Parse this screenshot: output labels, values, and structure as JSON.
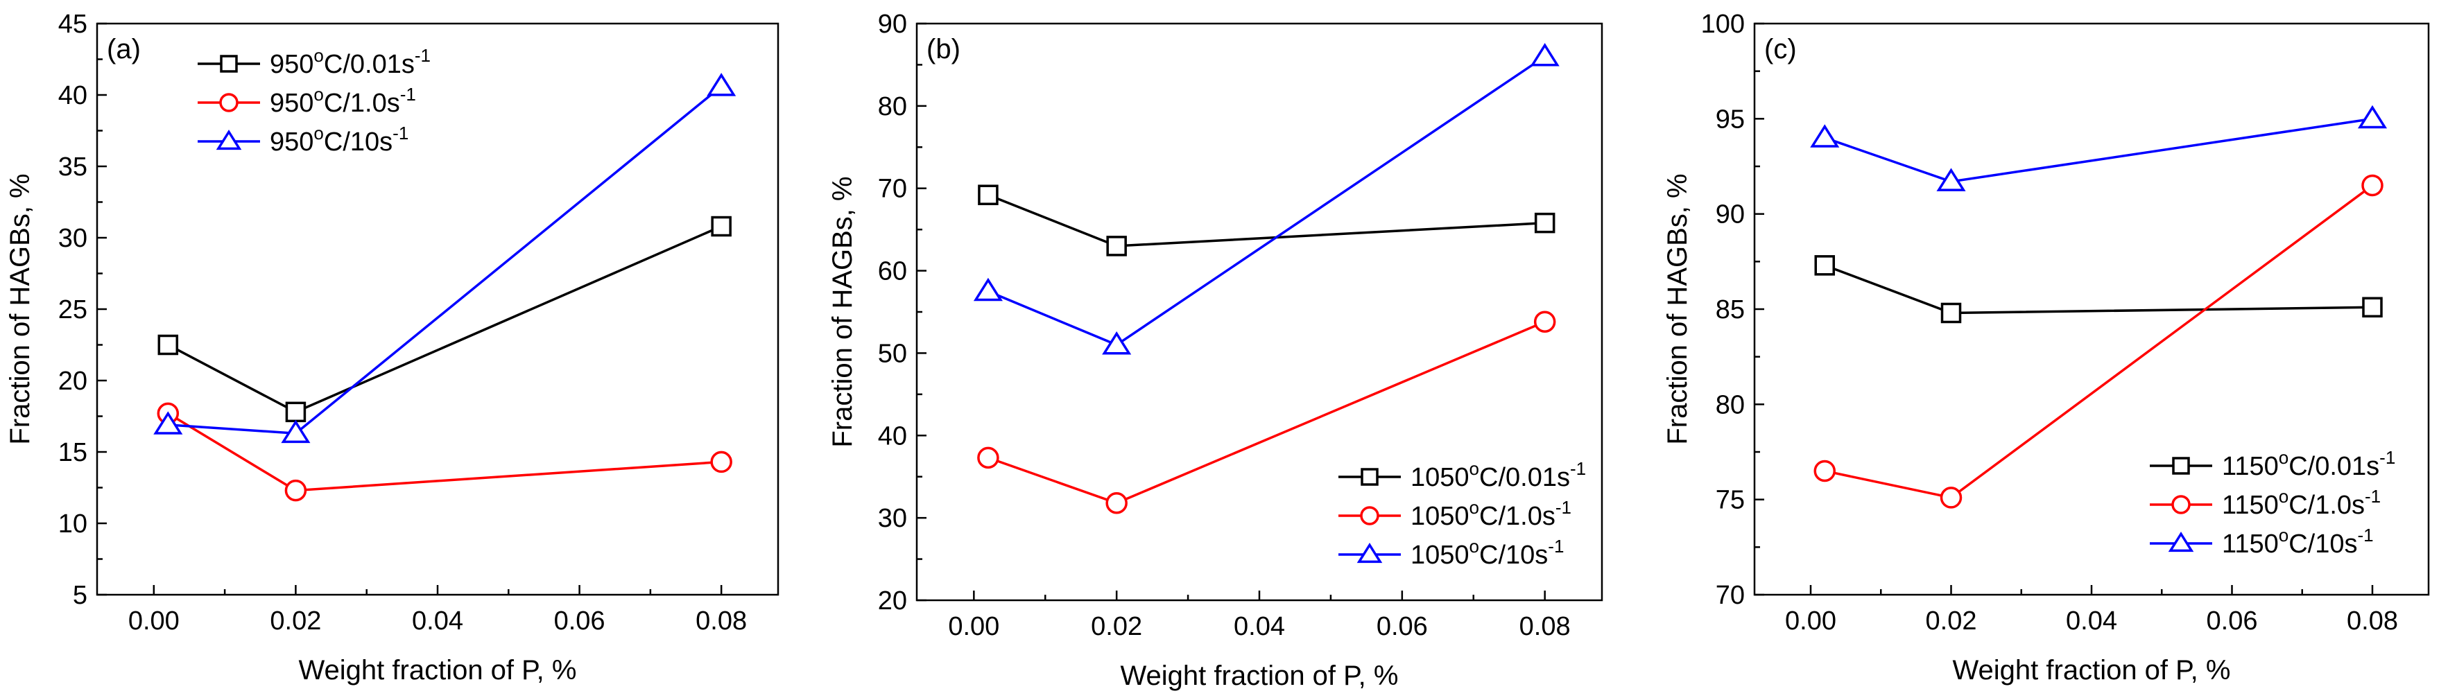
{
  "chart_data": [
    {
      "type": "line",
      "panel_label": "(a)",
      "xlabel": "Weight fraction of P, %",
      "ylabel": "Fraction of HAGBs, %",
      "xlim": [
        -0.008,
        0.088
      ],
      "ylim": [
        5,
        45
      ],
      "xticks": [
        "0.00",
        "0.02",
        "0.04",
        "0.06",
        "0.08"
      ],
      "yticks": [
        "5",
        "10",
        "15",
        "20",
        "25",
        "30",
        "35",
        "40",
        "45"
      ],
      "x": [
        0.002,
        0.02,
        0.08
      ],
      "legend_position": "top-left",
      "series": [
        {
          "name": "950°C/0.01s⁻¹",
          "label_main": "950",
          "label_mid": "C/0.01s",
          "label_sup": "-1",
          "marker": "square",
          "color": "#000000",
          "values": [
            22.5,
            17.8,
            30.8
          ]
        },
        {
          "name": "950°C/1.0s⁻¹",
          "label_main": "950",
          "label_mid": "C/1.0s",
          "label_sup": "-1",
          "marker": "circle",
          "color": "#ff0000",
          "values": [
            17.7,
            12.3,
            14.3
          ]
        },
        {
          "name": "950°C/10s⁻¹",
          "label_main": "950",
          "label_mid": "C/10s",
          "label_sup": "-1",
          "marker": "triangle",
          "color": "#0000ff",
          "values": [
            16.9,
            16.3,
            40.6
          ]
        }
      ]
    },
    {
      "type": "line",
      "panel_label": "(b)",
      "xlabel": "Weight fraction of P, %",
      "ylabel": "Fraction of HAGBs, %",
      "xlim": [
        -0.008,
        0.088
      ],
      "ylim": [
        20,
        90
      ],
      "xticks": [
        "0.00",
        "0.02",
        "0.04",
        "0.06",
        "0.08"
      ],
      "yticks": [
        "20",
        "30",
        "40",
        "50",
        "60",
        "70",
        "80",
        "90"
      ],
      "x": [
        0.002,
        0.02,
        0.08
      ],
      "legend_position": "bottom-right",
      "series": [
        {
          "name": "1050°C/0.01s⁻¹",
          "label_main": "1050",
          "label_mid": "C/0.01s",
          "label_sup": "-1",
          "marker": "square",
          "color": "#000000",
          "values": [
            69.2,
            63.0,
            65.8
          ]
        },
        {
          "name": "1050°C/1.0s⁻¹",
          "label_main": "1050",
          "label_mid": "C/1.0s",
          "label_sup": "-1",
          "marker": "circle",
          "color": "#ff0000",
          "values": [
            37.3,
            31.8,
            53.8
          ]
        },
        {
          "name": "1050°C/10s⁻¹",
          "label_main": "1050",
          "label_mid": "C/10s",
          "label_sup": "-1",
          "marker": "triangle",
          "color": "#0000ff",
          "values": [
            57.5,
            51.0,
            86.0
          ]
        }
      ]
    },
    {
      "type": "line",
      "panel_label": "(c)",
      "xlabel": "Weight fraction of P, %",
      "ylabel": "Fraction of HAGBs, %",
      "xlim": [
        -0.008,
        0.088
      ],
      "ylim": [
        70,
        100
      ],
      "xticks": [
        "0.00",
        "0.02",
        "0.04",
        "0.06",
        "0.08"
      ],
      "yticks": [
        "70",
        "75",
        "80",
        "85",
        "90",
        "95",
        "100"
      ],
      "x": [
        0.002,
        0.02,
        0.08
      ],
      "legend_position": "bottom-right",
      "series": [
        {
          "name": "1150°C/0.01s⁻¹",
          "label_main": "1150",
          "label_mid": "C/0.01s",
          "label_sup": "-1",
          "marker": "square",
          "color": "#000000",
          "values": [
            87.3,
            84.8,
            85.1
          ]
        },
        {
          "name": "1150°C/1.0s⁻¹",
          "label_main": "1150",
          "label_mid": "C/1.0s",
          "label_sup": "-1",
          "marker": "circle",
          "color": "#ff0000",
          "values": [
            76.5,
            75.1,
            91.5
          ]
        },
        {
          "name": "1150°C/10s⁻¹",
          "label_main": "1150",
          "label_mid": "C/10s",
          "label_sup": "-1",
          "marker": "triangle",
          "color": "#0000ff",
          "values": [
            94.0,
            91.7,
            95.0
          ]
        }
      ]
    }
  ]
}
